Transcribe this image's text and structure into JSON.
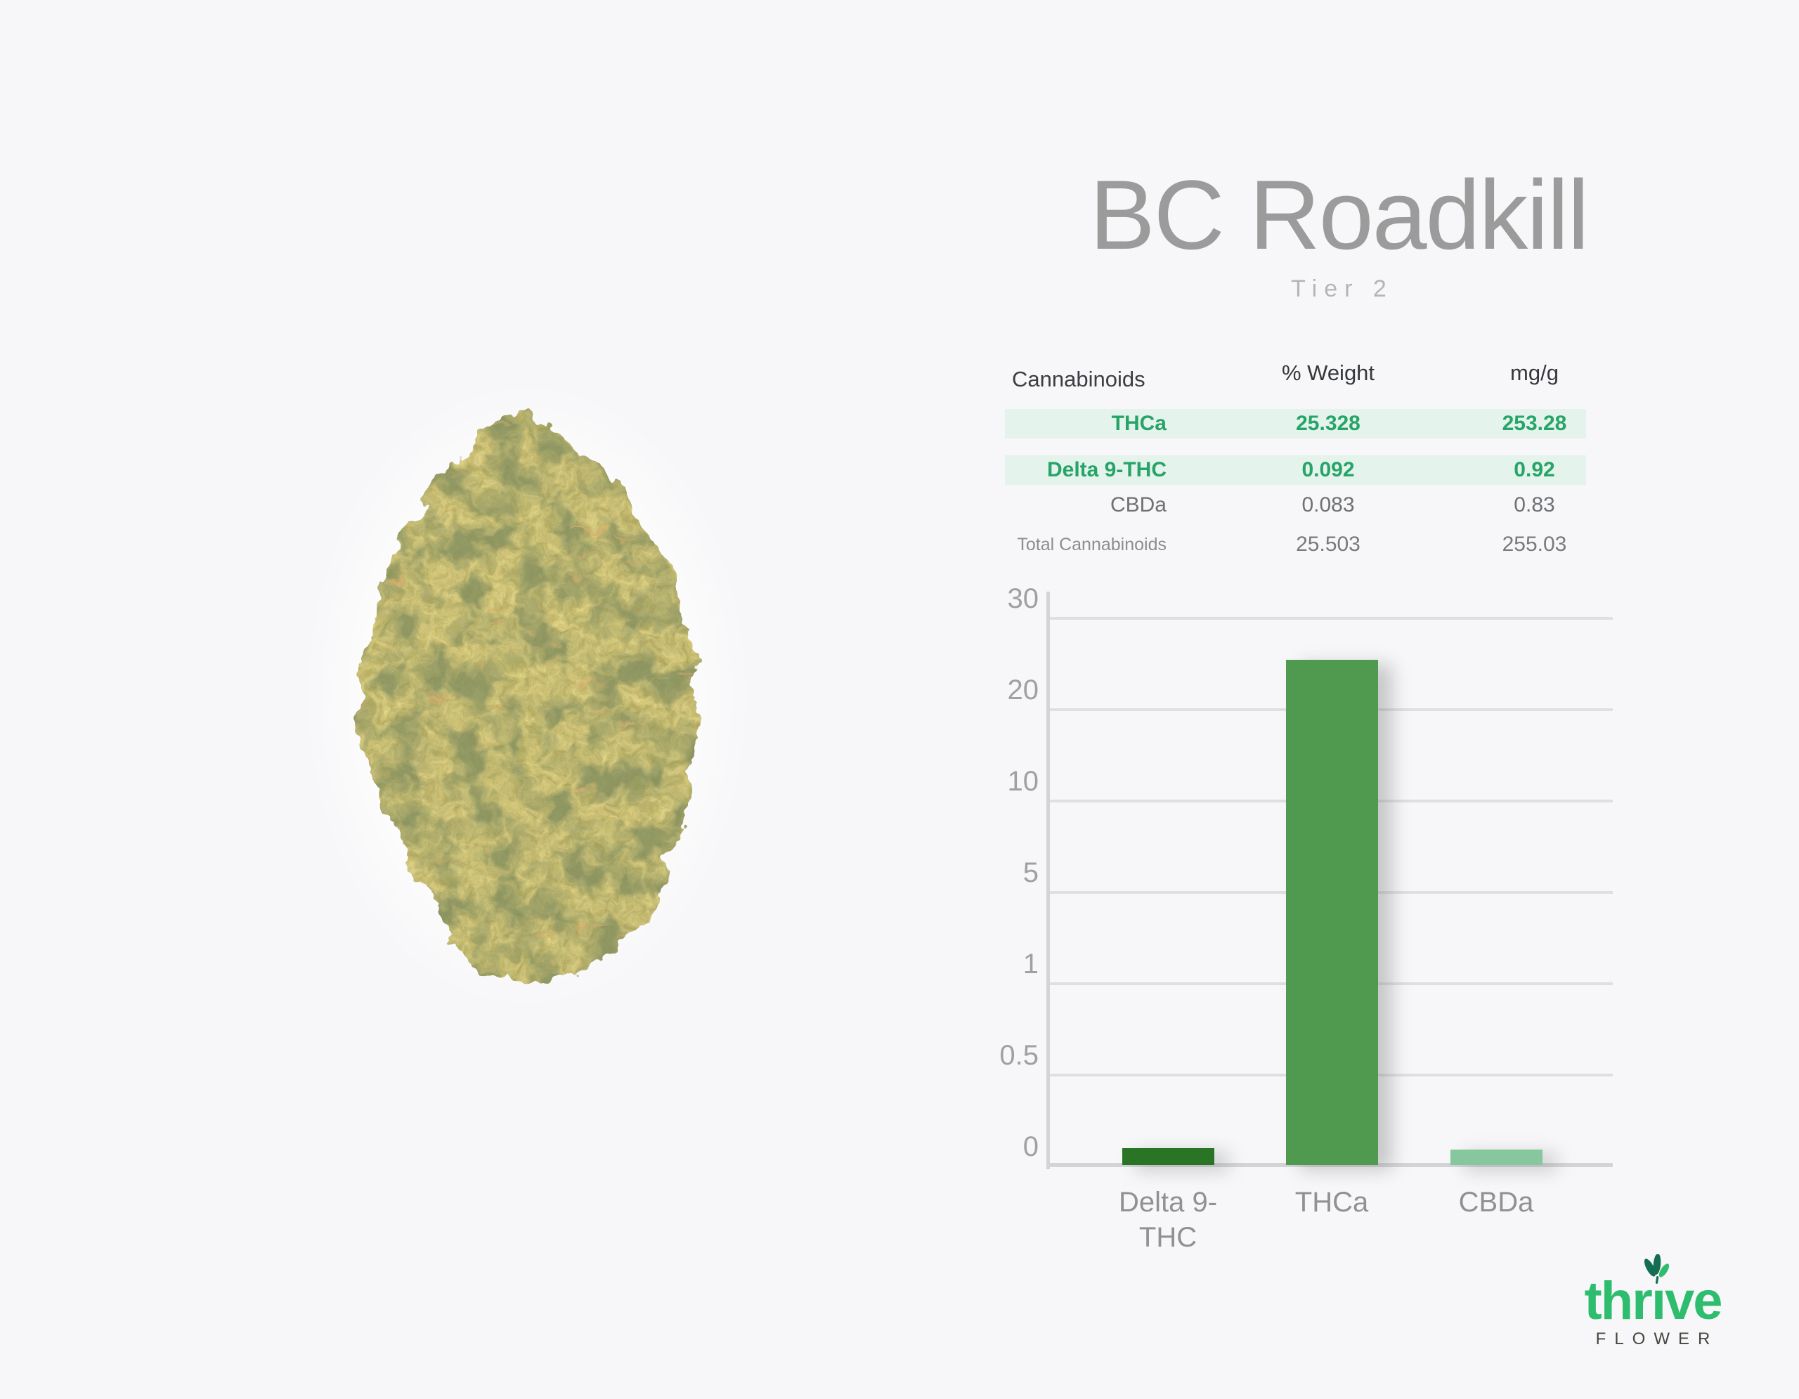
{
  "page": {
    "background": "#f7f7f9"
  },
  "header": {
    "title": "BC Roadkill",
    "subtitle": "Tier 2"
  },
  "table": {
    "headers": {
      "name": "Cannabinoids",
      "weight": "% Weight",
      "mgg": "mg/g"
    },
    "rows": [
      {
        "name": "THCa",
        "weight": "25.328",
        "mgg": "253.28",
        "highlight": true,
        "total": false
      },
      {
        "name": "Delta 9-THC",
        "weight": "0.092",
        "mgg": "0.92",
        "highlight": true,
        "total": false
      },
      {
        "name": "CBDa",
        "weight": "0.083",
        "mgg": "0.83",
        "highlight": false,
        "total": false
      },
      {
        "name": "Total Cannabinoids",
        "weight": "25.503",
        "mgg": "255.03",
        "highlight": false,
        "total": true
      }
    ],
    "highlight_bg": "#e4f3ec",
    "highlight_text": "#27a468"
  },
  "chart_data": {
    "type": "bar",
    "categories": [
      "Delta 9-THC",
      "THCa",
      "CBDa"
    ],
    "values": [
      0.092,
      25.328,
      0.083
    ],
    "bar_colors": [
      "#2a7426",
      "#4f9a4f",
      "#87c79d"
    ],
    "yticks": [
      0,
      0.5,
      1,
      5,
      10,
      20,
      30
    ],
    "ytick_labels": [
      "0",
      "0.5",
      "1",
      "5",
      "10",
      "20",
      "30"
    ],
    "scale": "piecewise-equal-segments",
    "ylim": [
      0,
      30
    ],
    "grid": true,
    "legend": false,
    "title": "",
    "xlabel": "",
    "ylabel": "",
    "grid_color": "#dfdfe1",
    "axis_color": "#d3d4d6"
  },
  "logo": {
    "brand": "thrive",
    "word_start": "thr",
    "word_i": "ı",
    "word_end": "ve",
    "subtext": "FLOWER",
    "green": "#2ebd6e",
    "leaf_dark": "#156d52"
  }
}
